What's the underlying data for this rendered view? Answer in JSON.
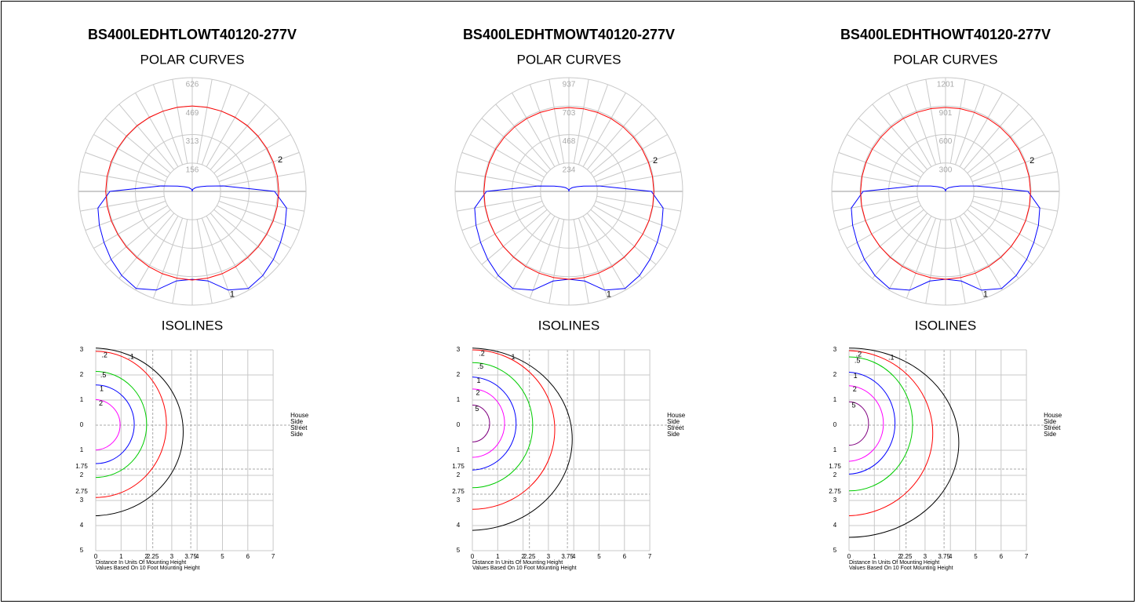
{
  "chart_data": [
    {
      "type": "polar",
      "title": "BS400LEDHTLOWT40120-277V",
      "subtitle": "POLAR CURVES",
      "rlim": [
        0,
        626
      ],
      "rticks": [
        156,
        313,
        469,
        626
      ],
      "angles": [
        0,
        10,
        20,
        30,
        40,
        50,
        60,
        70,
        80,
        90,
        100,
        110,
        120,
        130,
        140,
        150,
        160,
        170,
        180
      ],
      "series": [
        {
          "name": "1",
          "color": "#0000ff",
          "values": [
            484,
            500,
            578,
            617,
            604,
            583,
            561,
            544,
            527,
            453,
            173,
            86,
            52,
            35,
            26,
            17,
            13,
            9,
            0
          ]
        },
        {
          "name": "2",
          "color": "#ff0000",
          "values": [
            488,
            485,
            482,
            478,
            475,
            474,
            473,
            474,
            475,
            476,
            476,
            475,
            474,
            473,
            472,
            471,
            470,
            470,
            470
          ]
        }
      ]
    },
    {
      "type": "isoline",
      "title": "ISOLINES",
      "xlim": [
        0,
        7
      ],
      "ylim": [
        -3,
        5
      ],
      "xticks": [
        0,
        1,
        2,
        3,
        4,
        5,
        6,
        7
      ],
      "xref": [
        2.25,
        3.75
      ],
      "yticks": [
        {
          "value": -3,
          "label": "3"
        },
        {
          "value": -2,
          "label": "2"
        },
        {
          "value": -1,
          "label": "1"
        },
        0,
        1,
        2,
        3,
        4,
        5
      ],
      "yref": [
        1.75,
        2.75
      ],
      "side_labels": [
        "House",
        "Side",
        "Street",
        "Side"
      ],
      "notes": [
        "Distance In Units Of Mounting Height",
        "Values Based On 10 Foot Mounting Height"
      ],
      "series": [
        {
          "name": ".1",
          "color": "#000000",
          "reach": 3.56,
          "span": [
            -3.07,
            3.61
          ]
        },
        {
          "name": ".2",
          "color": "#ff0000",
          "reach": 2.79,
          "span": [
            -2.94,
            2.88
          ]
        },
        {
          "name": ".5",
          "color": "#00cc00",
          "reach": 2.01,
          "span": [
            -2.14,
            2.08
          ]
        },
        {
          "name": "1",
          "color": "#0000ff",
          "reach": 1.52,
          "span": [
            -1.6,
            1.53
          ]
        },
        {
          "name": "2",
          "color": "#ff00ff",
          "reach": 1.02,
          "span": [
            -1.02,
            0.99
          ]
        }
      ]
    },
    {
      "type": "polar",
      "title": "BS400LEDHTMOWT40120-277V",
      "subtitle": "POLAR CURVES",
      "rlim": [
        0,
        937
      ],
      "rticks": [
        234,
        468,
        703,
        937
      ],
      "angles": [
        0,
        10,
        20,
        30,
        40,
        50,
        60,
        70,
        80,
        90,
        100,
        110,
        120,
        130,
        140,
        150,
        160,
        170,
        180
      ],
      "series": [
        {
          "name": "1",
          "color": "#0000ff",
          "values": [
            724,
            750,
            866,
            924,
            905,
            872,
            840,
            814,
            788,
            679,
            258,
            129,
            78,
            52,
            39,
            26,
            19,
            13,
            0
          ]
        },
        {
          "name": "2",
          "color": "#ff0000",
          "values": [
            724,
            721,
            717,
            713,
            709,
            706,
            703,
            702,
            701,
            700,
            699,
            697,
            696,
            695,
            694,
            693,
            692,
            691,
            691
          ]
        }
      ]
    },
    {
      "type": "isoline",
      "title": "ISOLINES",
      "xlim": [
        0,
        7
      ],
      "ylim": [
        -3,
        5
      ],
      "xticks": [
        0,
        1,
        2,
        3,
        4,
        5,
        6,
        7
      ],
      "xref": [
        2.25,
        3.75
      ],
      "yticks": [
        {
          "value": -3,
          "label": "3"
        },
        {
          "value": -2,
          "label": "2"
        },
        {
          "value": -1,
          "label": "1"
        },
        0,
        1,
        2,
        3,
        4,
        5
      ],
      "yref": [
        1.75,
        2.75
      ],
      "side_labels": [
        "House",
        "Side",
        "Street",
        "Side"
      ],
      "notes": [
        "Distance In Units Of Mounting Height",
        "Values Based On 10 Foot Mounting Height"
      ],
      "series": [
        {
          "name": ".1",
          "color": "#000000",
          "reach": 4.06,
          "span": [
            -3.07,
            4.19
          ]
        },
        {
          "name": ".2",
          "color": "#ff0000",
          "reach": 3.25,
          "span": [
            -3.0,
            3.35
          ]
        },
        {
          "name": ".5",
          "color": "#00cc00",
          "reach": 2.38,
          "span": [
            -2.49,
            2.49
          ]
        },
        {
          "name": "1",
          "color": "#0000ff",
          "reach": 1.8,
          "span": [
            -1.92,
            1.79
          ]
        },
        {
          "name": "2",
          "color": "#ff00ff",
          "reach": 1.27,
          "span": [
            -1.44,
            1.28
          ]
        },
        {
          "name": "5",
          "color": "#800080",
          "reach": 0.68,
          "span": [
            -0.8,
            0.67
          ]
        }
      ]
    },
    {
      "type": "polar",
      "title": "BS400LEDHTHOWT40120-277V",
      "subtitle": "POLAR CURVES",
      "rlim": [
        0,
        1201
      ],
      "rticks": [
        300,
        600,
        901,
        1201
      ],
      "angles": [
        0,
        10,
        20,
        30,
        40,
        50,
        60,
        70,
        80,
        90,
        100,
        110,
        120,
        130,
        140,
        150,
        160,
        170,
        180
      ],
      "series": [
        {
          "name": "1",
          "color": "#0000ff",
          "values": [
            928,
            961,
            1110,
            1184,
            1160,
            1118,
            1077,
            1044,
            1010,
            870,
            331,
            166,
            99,
            66,
            50,
            33,
            25,
            17,
            0
          ]
        },
        {
          "name": "2",
          "color": "#ff0000",
          "values": [
            928,
            924,
            919,
            914,
            909,
            905,
            901,
            900,
            899,
            897,
            896,
            894,
            892,
            891,
            890,
            889,
            888,
            887,
            886
          ]
        }
      ]
    },
    {
      "type": "isoline",
      "title": "ISOLINES",
      "xlim": [
        0,
        7
      ],
      "ylim": [
        -3,
        5
      ],
      "xticks": [
        0,
        1,
        2,
        3,
        4,
        5,
        6,
        7
      ],
      "xref": [
        2.25,
        3.75
      ],
      "yticks": [
        {
          "value": -3,
          "label": "3"
        },
        {
          "value": -2,
          "label": "2"
        },
        {
          "value": -1,
          "label": "1"
        },
        0,
        1,
        2,
        3,
        4,
        5
      ],
      "yref": [
        1.75,
        2.75
      ],
      "side_labels": [
        "House",
        "Side",
        "Street",
        "Side"
      ],
      "notes": [
        "Distance In Units Of Mounting Height",
        "Values Based On 10 Foot Mounting Height"
      ],
      "series": [
        {
          "name": ".1",
          "color": "#000000",
          "reach": 4.33,
          "span": [
            -3.07,
            4.47
          ]
        },
        {
          "name": ".2",
          "color": "#ff0000",
          "reach": 3.41,
          "span": [
            -2.97,
            3.61
          ]
        },
        {
          "name": ".5",
          "color": "#00cc00",
          "reach": 2.51,
          "span": [
            -2.72,
            2.62
          ]
        },
        {
          "name": "1",
          "color": "#0000ff",
          "reach": 1.89,
          "span": [
            -2.11,
            1.95
          ]
        },
        {
          "name": "2",
          "color": "#ff00ff",
          "reach": 1.42,
          "span": [
            -1.57,
            1.44
          ]
        },
        {
          "name": "5",
          "color": "#800080",
          "reach": 0.77,
          "span": [
            -0.93,
            0.8
          ]
        }
      ]
    }
  ]
}
